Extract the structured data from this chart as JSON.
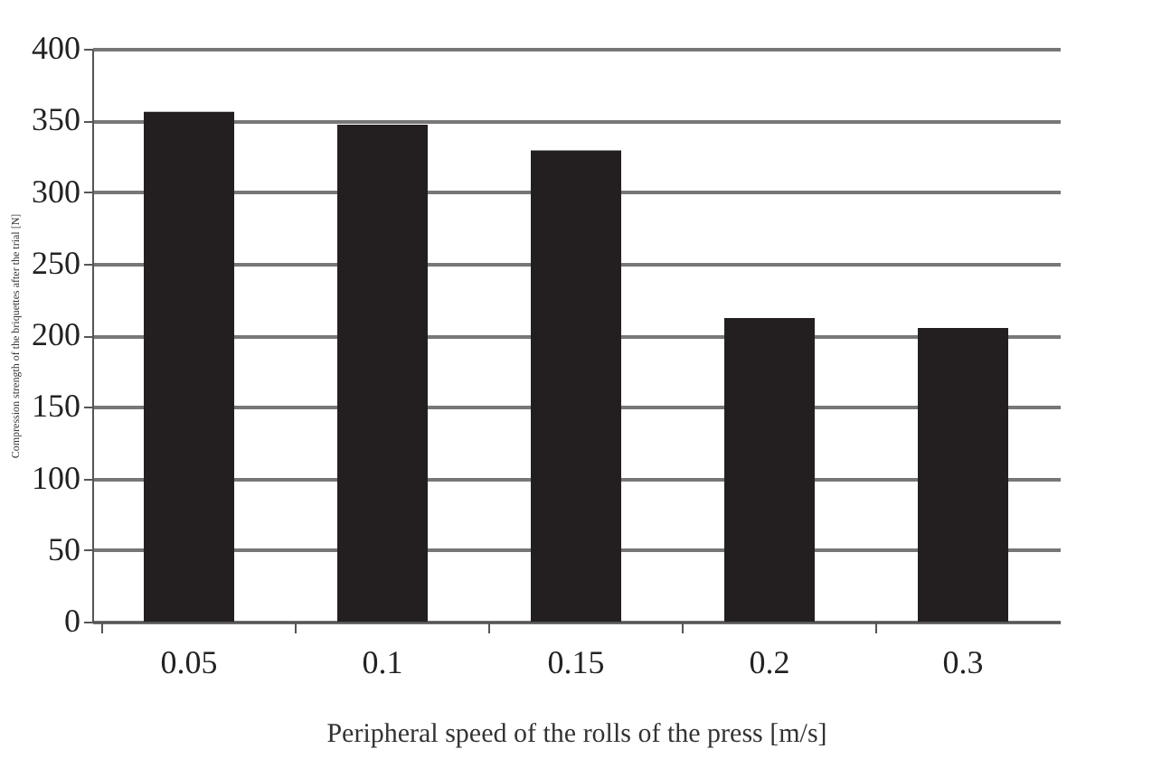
{
  "chart_data": {
    "type": "bar",
    "categories": [
      "0.05",
      "0.1",
      "0.15",
      "0.2",
      "0.3"
    ],
    "values": [
      356,
      347,
      329,
      212,
      205
    ],
    "color": "#231f20",
    "xlabel": "Peripheral speed of the rolls of the press [m/s]",
    "ylabel": "Compression strength of the briquettes after the trial [N]",
    "ylim": [
      0,
      400
    ],
    "yticks": [
      0,
      50,
      100,
      150,
      200,
      250,
      300,
      350,
      400
    ],
    "grid": "y"
  }
}
